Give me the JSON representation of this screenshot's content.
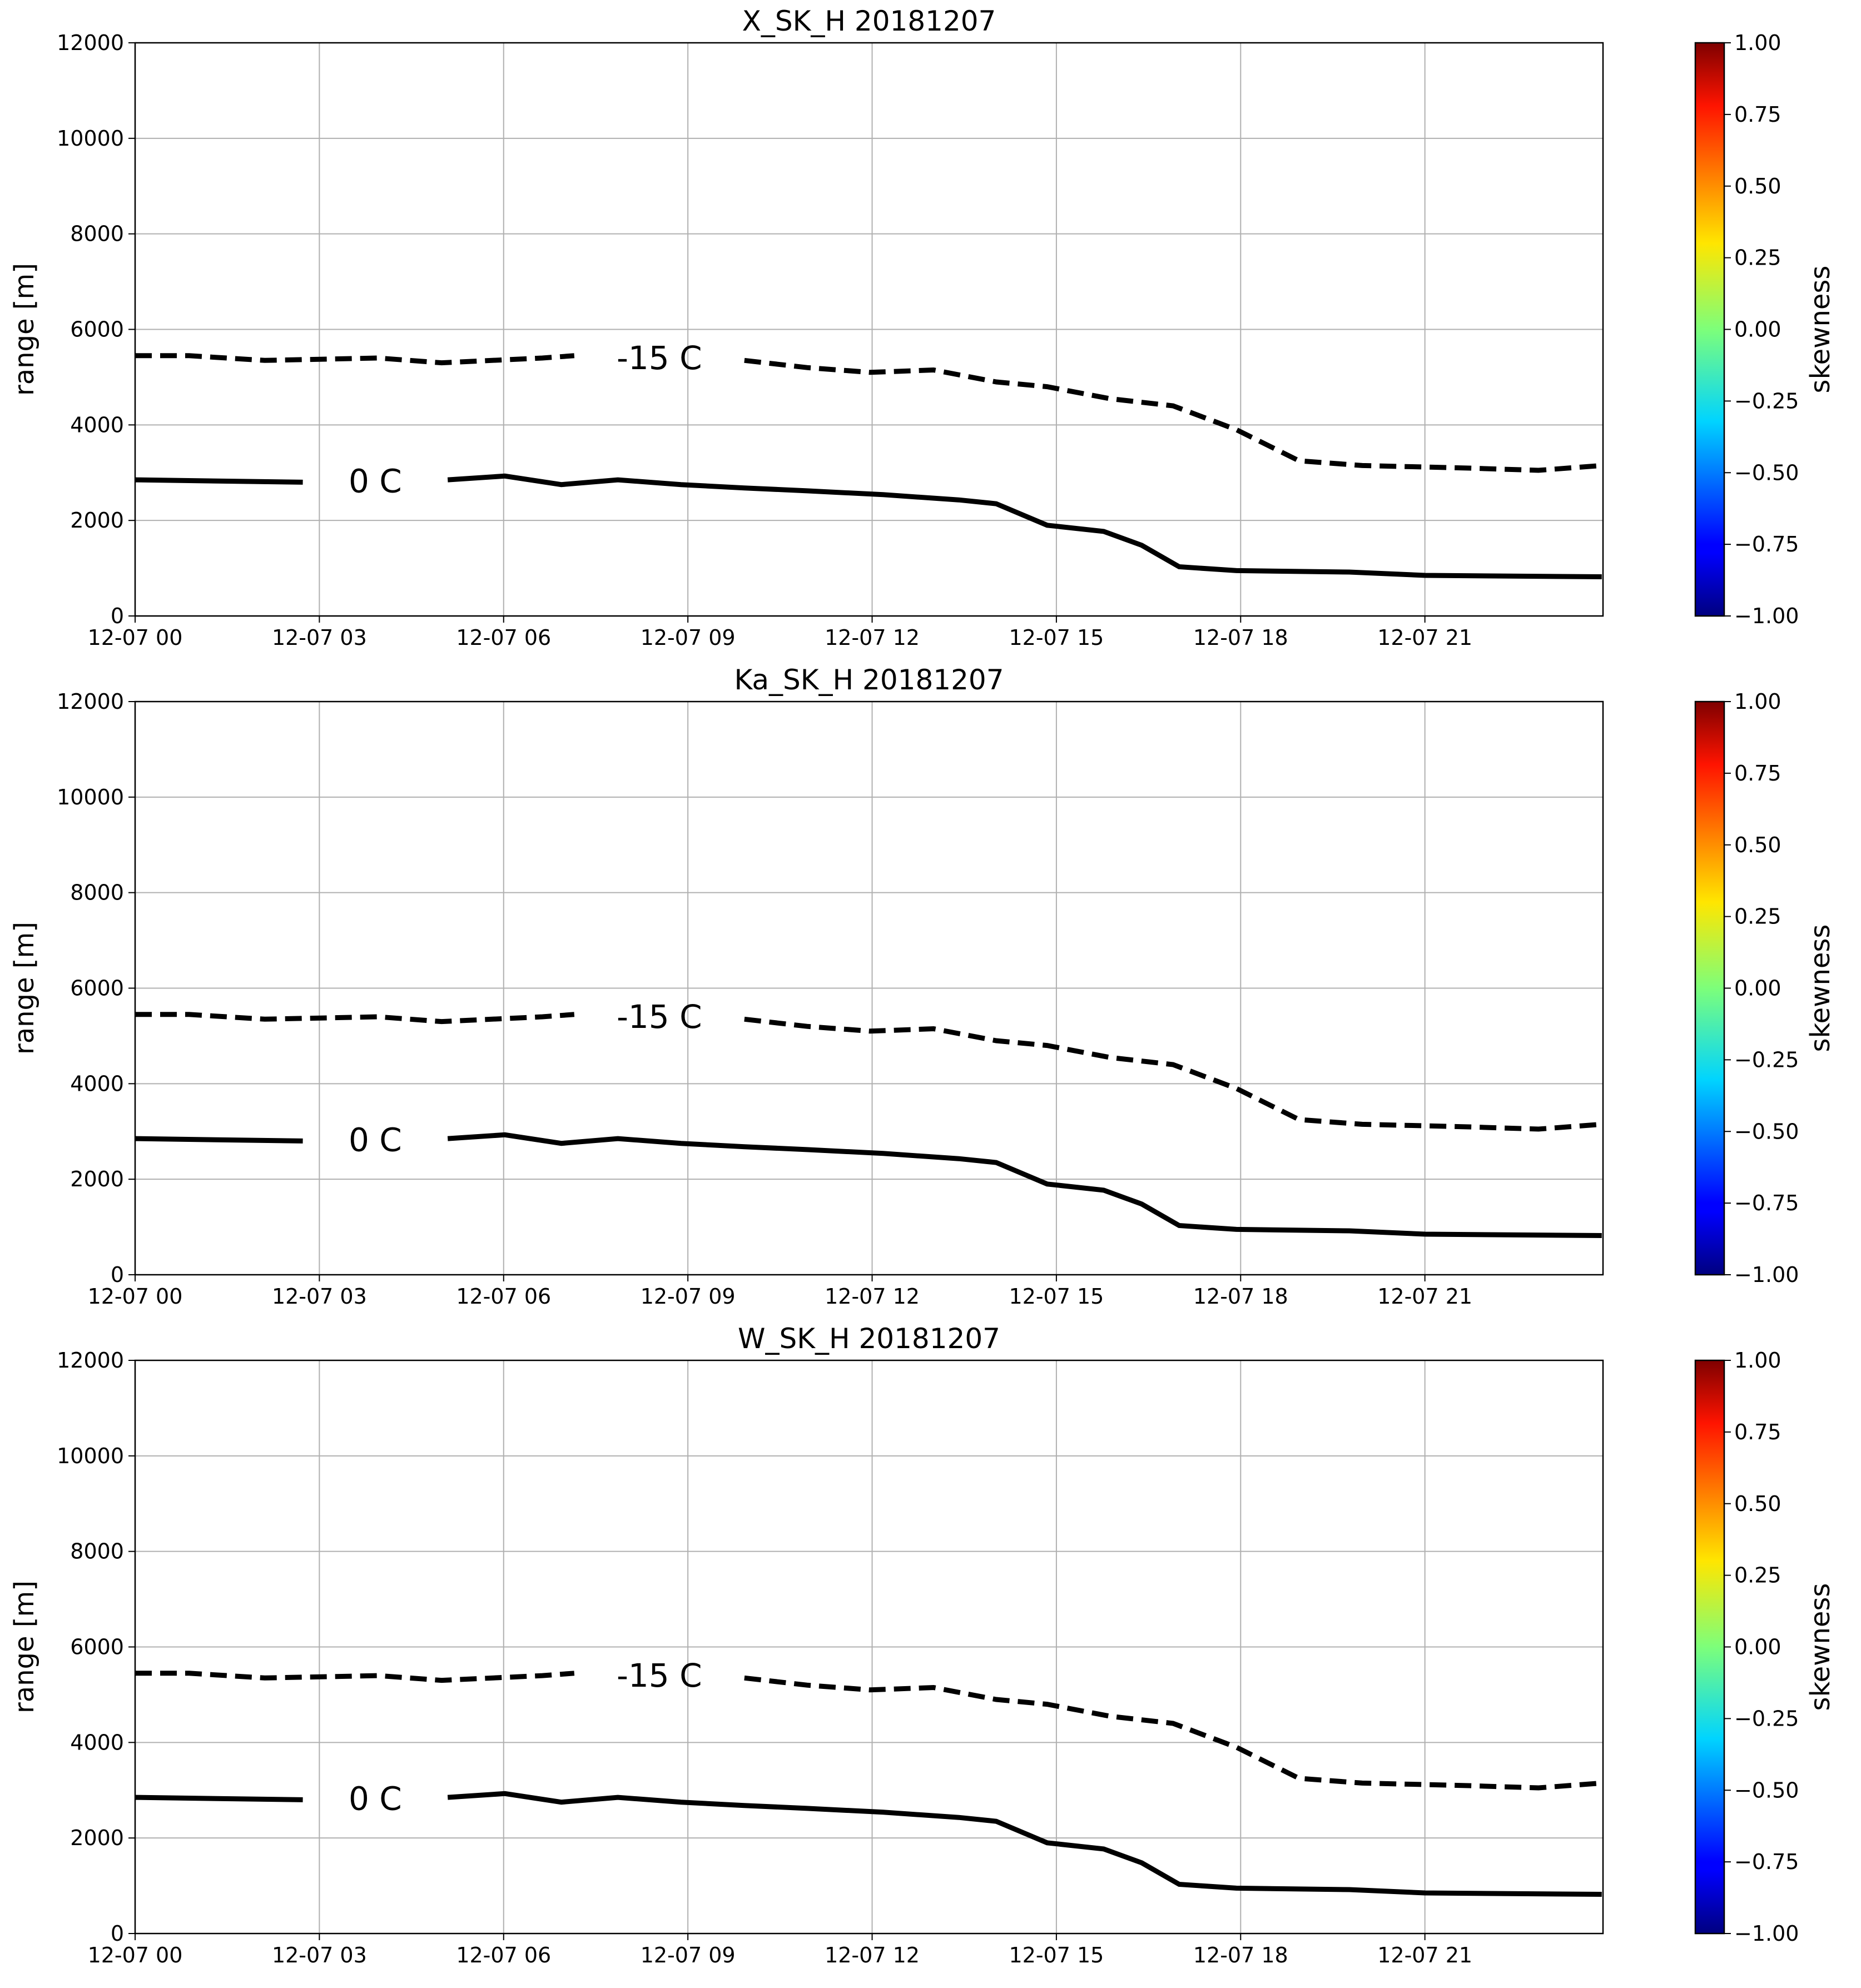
{
  "chart_data": [
    {
      "type": "line",
      "title": "X_SK_H 20181207",
      "ylabel": "range [m]",
      "xlim": [
        0,
        23.9
      ],
      "ylim": [
        0,
        12000
      ],
      "xticks": [
        {
          "value": 0,
          "label": "12-07 00"
        },
        {
          "value": 3,
          "label": "12-07 03"
        },
        {
          "value": 6,
          "label": "12-07 06"
        },
        {
          "value": 9,
          "label": "12-07 09"
        },
        {
          "value": 12,
          "label": "12-07 12"
        },
        {
          "value": 15,
          "label": "12-07 15"
        },
        {
          "value": 18,
          "label": "12-07 18"
        },
        {
          "value": 21,
          "label": "12-07 21"
        }
      ],
      "yticks": [
        0,
        2000,
        4000,
        6000,
        8000,
        10000,
        12000
      ],
      "grid": true,
      "annotations": [
        "0 C",
        "-15 C"
      ],
      "series": [
        {
          "color": "#000000",
          "style": "solid",
          "x": [
            0,
            2.73,
            3.96,
            5.09,
            6.02,
            6.94,
            7.86,
            8.89,
            9.92,
            10.94,
            12.18,
            13.41,
            14.02,
            14.85,
            15.77,
            16.39,
            17.0,
            17.93,
            19.77,
            21.0,
            23.88
          ],
          "values": [
            2850,
            2800,
            null,
            2850,
            2930,
            2750,
            2850,
            2750,
            2680,
            2620,
            2540,
            2430,
            2350,
            1900,
            1770,
            1480,
            1030,
            950,
            920,
            850,
            820
          ]
        },
        {
          "color": "#000000",
          "style": "dashed",
          "x": [
            0,
            0.88,
            2.11,
            3.96,
            4.99,
            6.63,
            7.15,
            8.79,
            9.92,
            10.94,
            11.97,
            13.0,
            14.02,
            14.85,
            15.87,
            16.9,
            17.93,
            18.95,
            19.98,
            21.62,
            22.85,
            23.88
          ],
          "values": [
            5450,
            5450,
            5350,
            5400,
            5300,
            5400,
            5450,
            null,
            5350,
            5200,
            5100,
            5150,
            4900,
            4800,
            4550,
            4400,
            3900,
            3250,
            3150,
            3100,
            3050,
            3150
          ]
        }
      ],
      "colorbar": {
        "label": "skewness",
        "colormap": "jet",
        "lim": [
          -1,
          1
        ],
        "ticks": [
          {
            "value": 1,
            "label": "1.00"
          },
          {
            "value": 0.75,
            "label": "0.75"
          },
          {
            "value": 0.5,
            "label": "0.50"
          },
          {
            "value": 0.25,
            "label": "0.25"
          },
          {
            "value": 0,
            "label": "0.00"
          },
          {
            "value": -0.25,
            "label": "−0.25"
          },
          {
            "value": -0.5,
            "label": "−0.50"
          },
          {
            "value": -0.75,
            "label": "−0.75"
          },
          {
            "value": -1,
            "label": "−1.00"
          }
        ]
      }
    },
    {
      "type": "line",
      "title": "Ka_SK_H 20181207",
      "ylabel": "range [m]",
      "xlim": [
        0,
        23.9
      ],
      "ylim": [
        0,
        12000
      ],
      "xticks": [
        {
          "value": 0,
          "label": "12-07 00"
        },
        {
          "value": 3,
          "label": "12-07 03"
        },
        {
          "value": 6,
          "label": "12-07 06"
        },
        {
          "value": 9,
          "label": "12-07 09"
        },
        {
          "value": 12,
          "label": "12-07 12"
        },
        {
          "value": 15,
          "label": "12-07 15"
        },
        {
          "value": 18,
          "label": "12-07 18"
        },
        {
          "value": 21,
          "label": "12-07 21"
        }
      ],
      "yticks": [
        0,
        2000,
        4000,
        6000,
        8000,
        10000,
        12000
      ],
      "grid": true,
      "annotations": [
        "0 C",
        "-15 C"
      ],
      "series": [
        {
          "color": "#000000",
          "style": "solid",
          "x": [
            0,
            2.73,
            3.96,
            5.09,
            6.02,
            6.94,
            7.86,
            8.89,
            9.92,
            10.94,
            12.18,
            13.41,
            14.02,
            14.85,
            15.77,
            16.39,
            17.0,
            17.93,
            19.77,
            21.0,
            23.88
          ],
          "values": [
            2850,
            2800,
            null,
            2850,
            2930,
            2750,
            2850,
            2750,
            2680,
            2620,
            2540,
            2430,
            2350,
            1900,
            1770,
            1480,
            1030,
            950,
            920,
            850,
            820
          ]
        },
        {
          "color": "#000000",
          "style": "dashed",
          "x": [
            0,
            0.88,
            2.11,
            3.96,
            4.99,
            6.63,
            7.15,
            8.79,
            9.92,
            10.94,
            11.97,
            13.0,
            14.02,
            14.85,
            15.87,
            16.9,
            17.93,
            18.95,
            19.98,
            21.62,
            22.85,
            23.88
          ],
          "values": [
            5450,
            5450,
            5350,
            5400,
            5300,
            5400,
            5450,
            null,
            5350,
            5200,
            5100,
            5150,
            4900,
            4800,
            4550,
            4400,
            3900,
            3250,
            3150,
            3100,
            3050,
            3150
          ]
        }
      ],
      "colorbar": {
        "label": "skewness",
        "colormap": "jet",
        "lim": [
          -1,
          1
        ],
        "ticks": [
          {
            "value": 1,
            "label": "1.00"
          },
          {
            "value": 0.75,
            "label": "0.75"
          },
          {
            "value": 0.5,
            "label": "0.50"
          },
          {
            "value": 0.25,
            "label": "0.25"
          },
          {
            "value": 0,
            "label": "0.00"
          },
          {
            "value": -0.25,
            "label": "−0.25"
          },
          {
            "value": -0.5,
            "label": "−0.50"
          },
          {
            "value": -0.75,
            "label": "−0.75"
          },
          {
            "value": -1,
            "label": "−1.00"
          }
        ]
      }
    },
    {
      "type": "line",
      "title": "W_SK_H 20181207",
      "ylabel": "range [m]",
      "xlim": [
        0,
        23.9
      ],
      "ylim": [
        0,
        12000
      ],
      "xticks": [
        {
          "value": 0,
          "label": "12-07 00"
        },
        {
          "value": 3,
          "label": "12-07 03"
        },
        {
          "value": 6,
          "label": "12-07 06"
        },
        {
          "value": 9,
          "label": "12-07 09"
        },
        {
          "value": 12,
          "label": "12-07 12"
        },
        {
          "value": 15,
          "label": "12-07 15"
        },
        {
          "value": 18,
          "label": "12-07 18"
        },
        {
          "value": 21,
          "label": "12-07 21"
        }
      ],
      "yticks": [
        0,
        2000,
        4000,
        6000,
        8000,
        10000,
        12000
      ],
      "grid": true,
      "annotations": [
        "0 C",
        "-15 C"
      ],
      "series": [
        {
          "color": "#000000",
          "style": "solid",
          "x": [
            0,
            2.73,
            3.96,
            5.09,
            6.02,
            6.94,
            7.86,
            8.89,
            9.92,
            10.94,
            12.18,
            13.41,
            14.02,
            14.85,
            15.77,
            16.39,
            17.0,
            17.93,
            19.77,
            21.0,
            23.88
          ],
          "values": [
            2850,
            2800,
            null,
            2850,
            2930,
            2750,
            2850,
            2750,
            2680,
            2620,
            2540,
            2430,
            2350,
            1900,
            1770,
            1480,
            1030,
            950,
            920,
            850,
            820
          ]
        },
        {
          "color": "#000000",
          "style": "dashed",
          "x": [
            0,
            0.88,
            2.11,
            3.96,
            4.99,
            6.63,
            7.15,
            8.79,
            9.92,
            10.94,
            11.97,
            13.0,
            14.02,
            14.85,
            15.87,
            16.9,
            17.93,
            18.95,
            19.98,
            21.62,
            22.85,
            23.88
          ],
          "values": [
            5450,
            5450,
            5350,
            5400,
            5300,
            5400,
            5450,
            null,
            5350,
            5200,
            5100,
            5150,
            4900,
            4800,
            4550,
            4400,
            3900,
            3250,
            3150,
            3100,
            3050,
            3150
          ]
        }
      ],
      "colorbar": {
        "label": "skewness",
        "colormap": "jet",
        "lim": [
          -1,
          1
        ],
        "ticks": [
          {
            "value": 1,
            "label": "1.00"
          },
          {
            "value": 0.75,
            "label": "0.75"
          },
          {
            "value": 0.5,
            "label": "0.50"
          },
          {
            "value": 0.25,
            "label": "0.25"
          },
          {
            "value": 0,
            "label": "0.00"
          },
          {
            "value": -0.25,
            "label": "−0.25"
          },
          {
            "value": -0.5,
            "label": "−0.50"
          },
          {
            "value": -0.75,
            "label": "−0.75"
          },
          {
            "value": -1,
            "label": "−1.00"
          }
        ]
      }
    }
  ]
}
